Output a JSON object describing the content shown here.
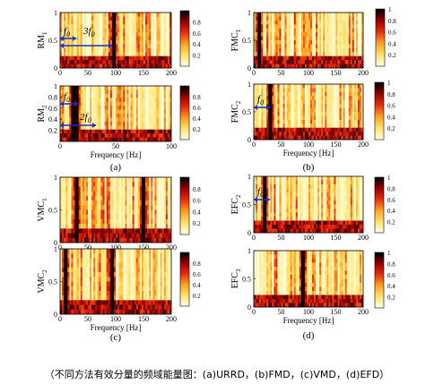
{
  "caption": "（不同方法有效分量的频域能量图：(a)URRD，(b)FMD，(c)VMD，(d)EFD）",
  "colorbar": {
    "ticks": [
      0.2,
      0.4,
      0.6,
      0.8
    ],
    "ticks_short": [
      0.2,
      0.4,
      0.6,
      0.8,
      1
    ],
    "cmap": [
      "#ffffe0",
      "#ffe066",
      "#ffa020",
      "#e83010",
      "#a00000",
      "#000000"
    ]
  },
  "chart_data": [
    {
      "type": "heatmap",
      "panel": "a",
      "ylabel": "RM1",
      "xlabel": "",
      "xlim": [
        0,
        200
      ],
      "xticks": [
        0,
        50,
        100,
        150,
        200
      ],
      "ylim": [
        0,
        1
      ],
      "yticks": [
        0,
        0.5,
        1
      ],
      "annotations": [
        "f0",
        "3f0"
      ],
      "dominant_frequencies": [
        95
      ]
    },
    {
      "type": "heatmap",
      "panel": "a",
      "ylabel": "RM2",
      "xlabel": "Frequency [Hz]",
      "xlim": [
        0,
        100
      ],
      "xticks": [
        0,
        50,
        100
      ],
      "ylim": [
        0,
        1
      ],
      "yticks": [
        0.2,
        0.4,
        0.6,
        0.8,
        1
      ],
      "annotations": [
        "f0",
        "2f0"
      ],
      "dominant_frequencies": [
        12,
        15
      ]
    },
    {
      "type": "heatmap",
      "panel": "b",
      "ylabel": "FMC1",
      "xlabel": "",
      "xlim": [
        0,
        200
      ],
      "xticks": [
        0,
        50,
        100,
        150,
        200
      ],
      "ylim": [
        0,
        1
      ],
      "yticks": [
        0,
        0.5,
        1
      ],
      "annotations": [],
      "dominant_frequencies": [
        10
      ]
    },
    {
      "type": "heatmap",
      "panel": "b",
      "ylabel": "FMC2",
      "xlabel": "Frequency [Hz]",
      "xlim": [
        0,
        200
      ],
      "xticks": [
        0,
        50,
        100,
        150,
        200
      ],
      "ylim": [
        0,
        1
      ],
      "yticks": [
        0,
        0.5,
        1
      ],
      "annotations": [
        "f0"
      ],
      "dominant_frequencies": [
        30
      ]
    },
    {
      "type": "heatmap",
      "panel": "c",
      "ylabel": "VMC1",
      "xlabel": "",
      "xlim": [
        0,
        200
      ],
      "xticks": [
        0,
        50,
        100,
        150,
        200
      ],
      "ylim": [
        0,
        1
      ],
      "yticks": [
        0,
        0.5,
        1
      ],
      "annotations": [],
      "dominant_frequencies": [
        30,
        150
      ]
    },
    {
      "type": "heatmap",
      "panel": "c",
      "ylabel": "VMC2",
      "xlabel": "Frequency [Hz]",
      "xlim": [
        0,
        200
      ],
      "xticks": [
        0,
        50,
        100,
        150,
        200
      ],
      "ylim": [
        0,
        1
      ],
      "yticks": [
        0,
        0.5,
        1
      ],
      "annotations": [],
      "dominant_frequencies": [
        10,
        92
      ]
    },
    {
      "type": "heatmap",
      "panel": "d",
      "ylabel": "EFC2",
      "xlabel": "",
      "xlim": [
        0,
        200
      ],
      "xticks": [
        0,
        50,
        100,
        150,
        200
      ],
      "ylim": [
        0,
        1
      ],
      "yticks": [
        0,
        0.5,
        1
      ],
      "annotations": [
        "f0"
      ],
      "dominant_frequencies": [
        20
      ]
    },
    {
      "type": "heatmap",
      "panel": "d",
      "ylabel": "EFC3",
      "xlabel": "Frequency [Hz]",
      "xlim": [
        0,
        200
      ],
      "xticks": [
        0,
        50,
        100,
        150,
        200
      ],
      "ylim": [
        0,
        1
      ],
      "yticks": [
        0,
        0.5,
        1
      ],
      "annotations": [],
      "dominant_frequencies": [
        90
      ]
    }
  ],
  "panel_labels": [
    "(a)",
    "(b)",
    "(c)",
    "(d)"
  ]
}
